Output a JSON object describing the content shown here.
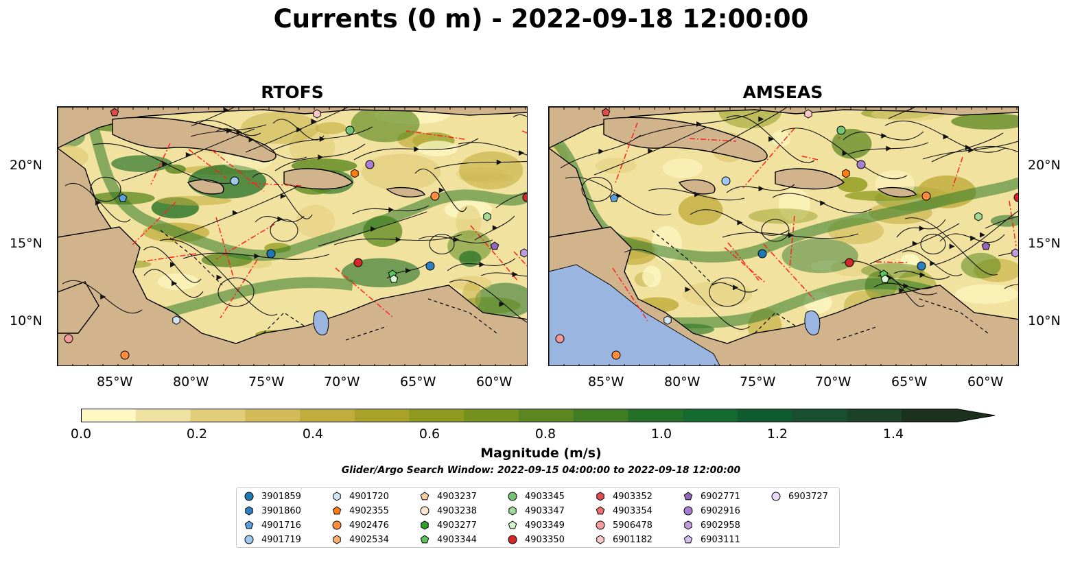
{
  "title": "Currents (0 m) - 2022-09-18 12:00:00",
  "panels": [
    {
      "id": "rtofs",
      "title": "RTOFS"
    },
    {
      "id": "amseas",
      "title": "AMSEAS"
    }
  ],
  "axes": {
    "lon_ticks": [
      "85°W",
      "80°W",
      "75°W",
      "70°W",
      "65°W",
      "60°W"
    ],
    "lat_ticks": [
      "20°N",
      "15°N",
      "10°N"
    ]
  },
  "colorbar": {
    "label": "Magnitude (m/s)",
    "ticks": [
      "0.0",
      "0.2",
      "0.4",
      "0.6",
      "0.8",
      "1.0",
      "1.2",
      "1.4"
    ],
    "colors": [
      "#fdf8c4",
      "#f0e2a0",
      "#e1cd7a",
      "#d2bb58",
      "#c1ad3e",
      "#a9a12a",
      "#8e9a1e",
      "#73911c",
      "#5a871f",
      "#3f7c24",
      "#237127",
      "#156a30",
      "#105a30",
      "#174f30",
      "#1b4126",
      "#1b311d"
    ]
  },
  "search_window": "Glider/Argo Search Window: 2022-09-15 04:00:00 to 2022-09-18 12:00:00",
  "legend": [
    {
      "id": "3901859",
      "marker": "circle",
      "color": "#1f77b4"
    },
    {
      "id": "3901860",
      "marker": "hexagon",
      "color": "#2f7fc1"
    },
    {
      "id": "4901716",
      "marker": "pentagon",
      "color": "#5a9fe0"
    },
    {
      "id": "4901719",
      "marker": "circle",
      "color": "#9ec8ee"
    },
    {
      "id": "4901720",
      "marker": "hexagon",
      "color": "#cfe6f7"
    },
    {
      "id": "4902355",
      "marker": "pentagon",
      "color": "#ff7f0e"
    },
    {
      "id": "4902476",
      "marker": "circle",
      "color": "#fd8d3c"
    },
    {
      "id": "4902534",
      "marker": "hexagon",
      "color": "#fdae6b"
    },
    {
      "id": "4903237",
      "marker": "pentagon",
      "color": "#fdd0a2"
    },
    {
      "id": "4903238",
      "marker": "circle",
      "color": "#fee6ce"
    },
    {
      "id": "4903277",
      "marker": "hexagon",
      "color": "#2ca02c"
    },
    {
      "id": "4903344",
      "marker": "pentagon",
      "color": "#5cc55c"
    },
    {
      "id": "4903345",
      "marker": "circle",
      "color": "#74c476"
    },
    {
      "id": "4903347",
      "marker": "hexagon",
      "color": "#a1d99b"
    },
    {
      "id": "4903349",
      "marker": "pentagon",
      "color": "#d4f5d0"
    },
    {
      "id": "4903350",
      "marker": "circle",
      "color": "#d62728"
    },
    {
      "id": "4903352",
      "marker": "hexagon",
      "color": "#e04b4b"
    },
    {
      "id": "4903354",
      "marker": "pentagon",
      "color": "#ee6e6e"
    },
    {
      "id": "5906478",
      "marker": "circle",
      "color": "#f49a9a"
    },
    {
      "id": "6901182",
      "marker": "hexagon",
      "color": "#f9c9c9"
    },
    {
      "id": "6902771",
      "marker": "pentagon",
      "color": "#9467bd"
    },
    {
      "id": "6902916",
      "marker": "circle",
      "color": "#a77fd0"
    },
    {
      "id": "6902958",
      "marker": "hexagon",
      "color": "#bf9be0"
    },
    {
      "id": "6903111",
      "marker": "pentagon",
      "color": "#d5bdef"
    },
    {
      "id": "6903727",
      "marker": "circle",
      "color": "#ead8fb"
    }
  ]
}
